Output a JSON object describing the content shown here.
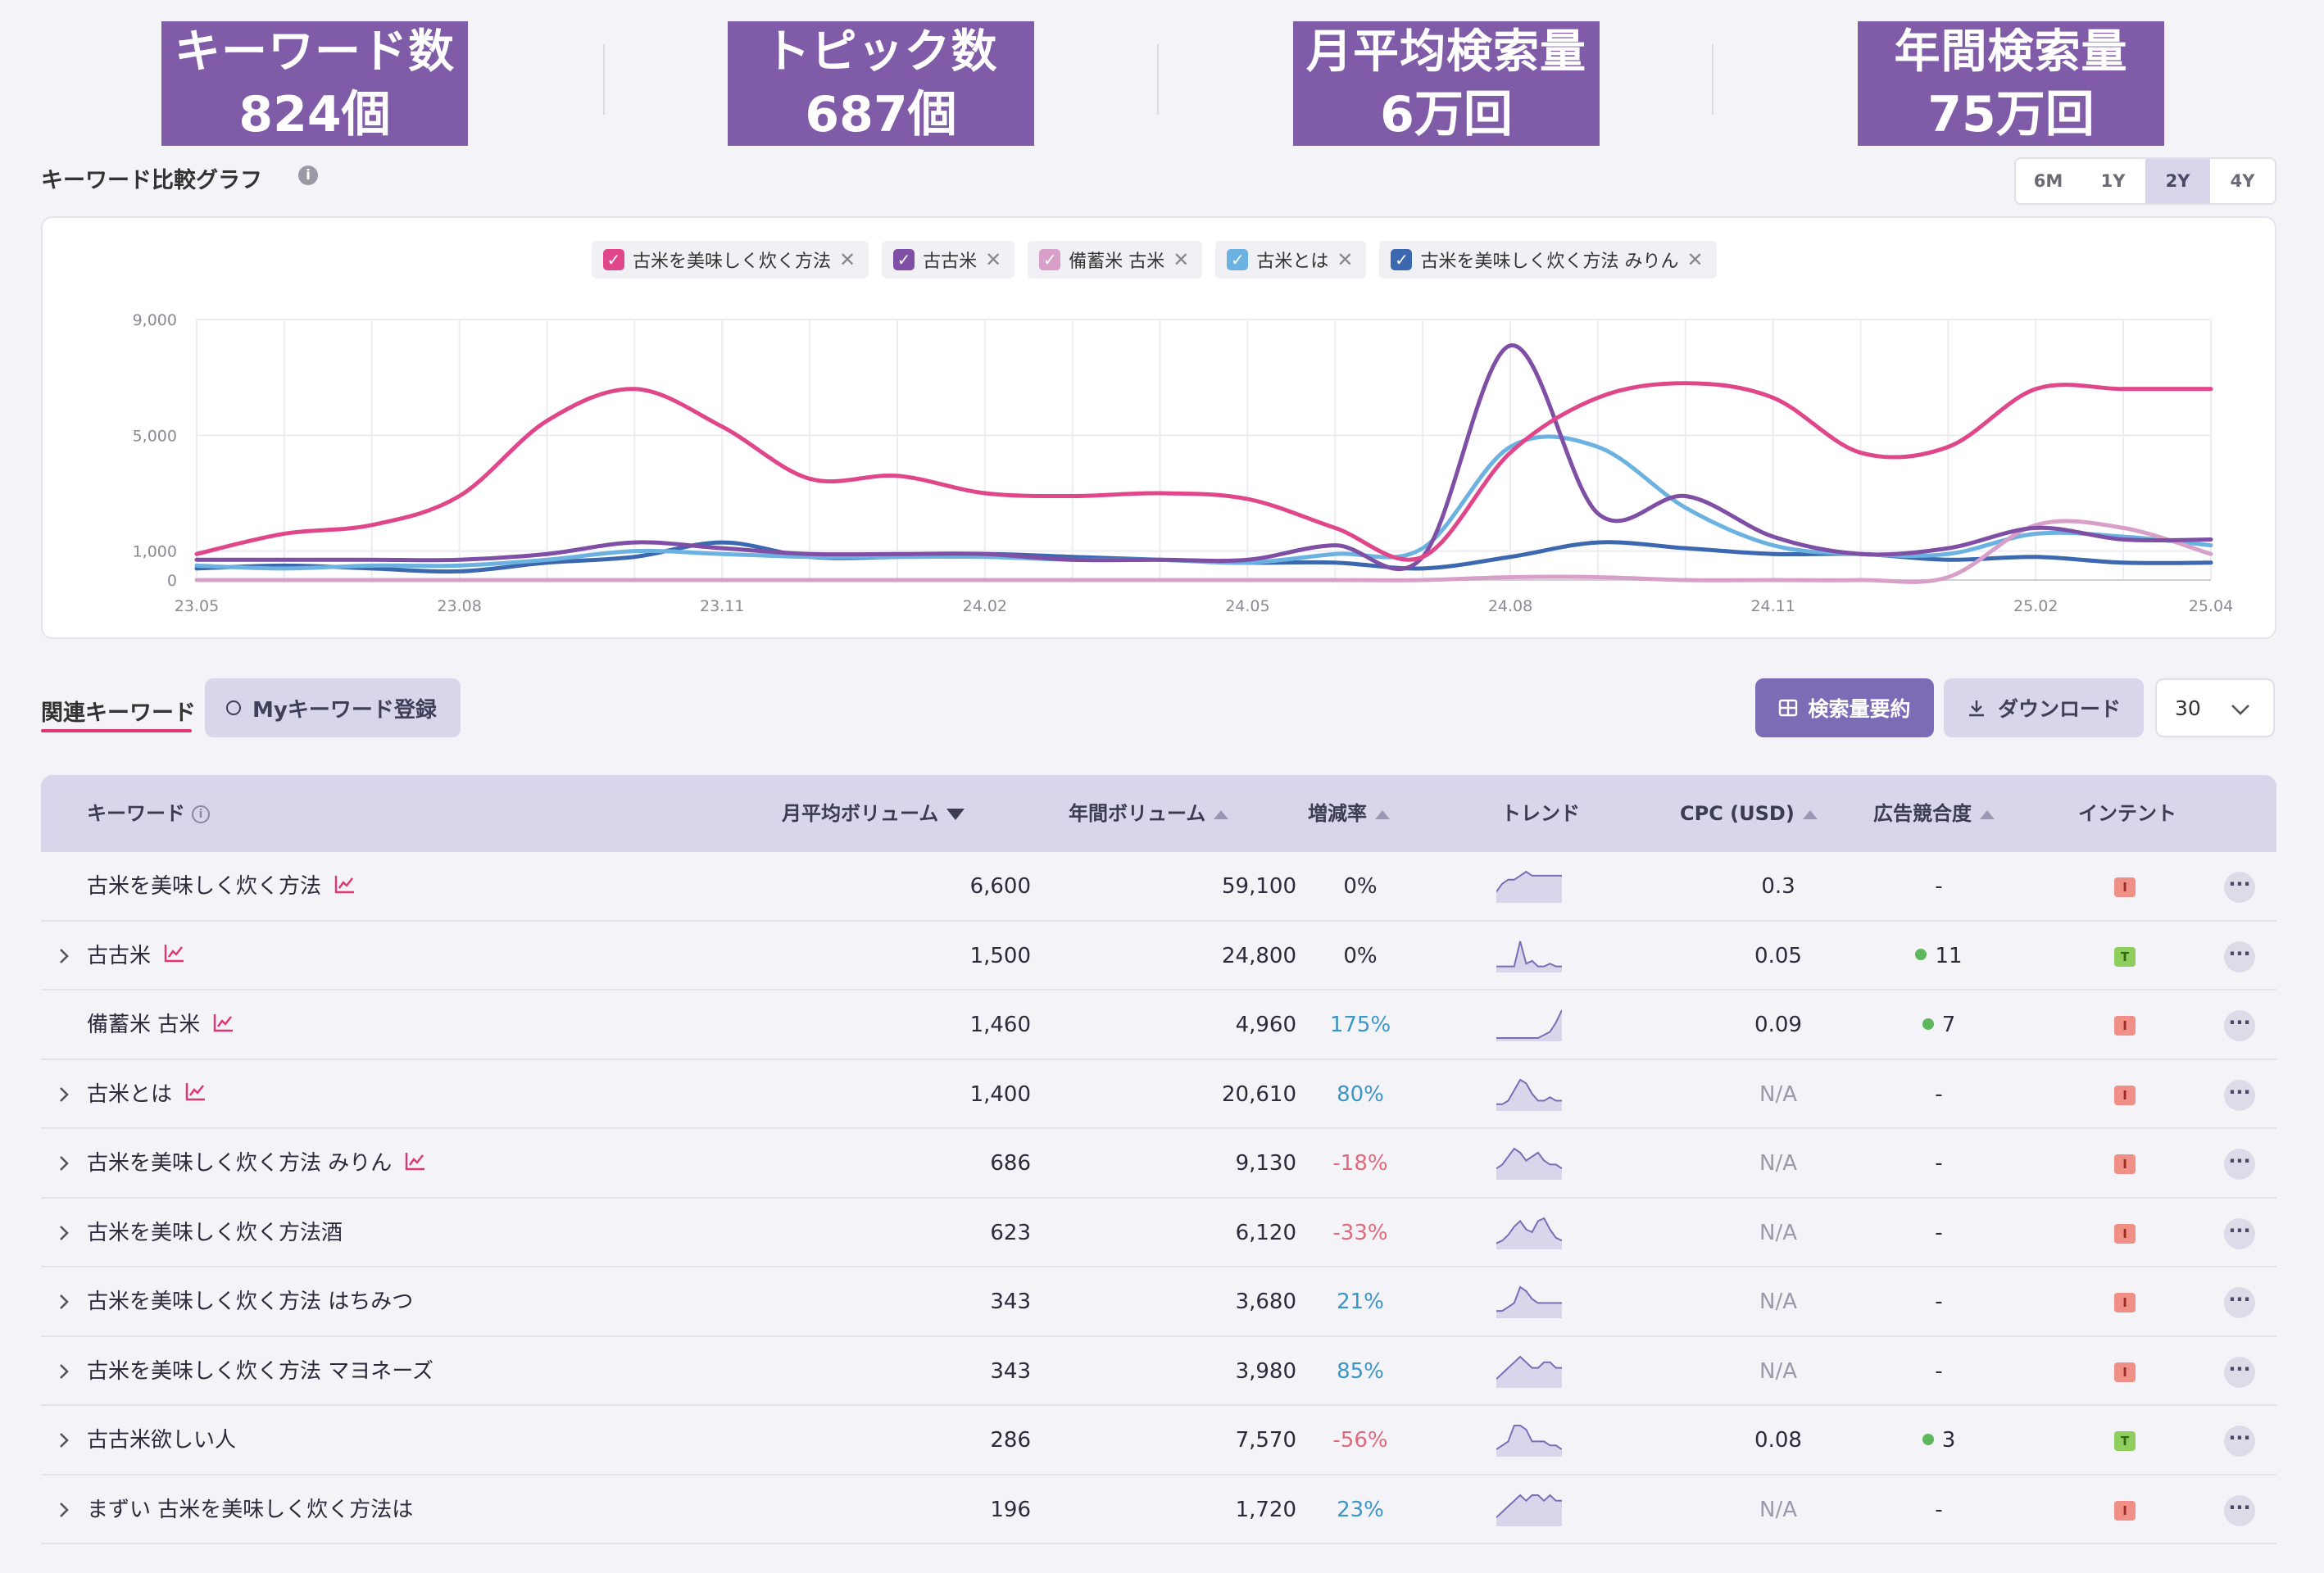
{
  "kpis": [
    {
      "title": "キーワード数",
      "value": "824個"
    },
    {
      "title": "トピック数",
      "value": "687個"
    },
    {
      "title": "月平均検索量",
      "value": "6万回"
    },
    {
      "title": "年間検索量",
      "value": "75万回"
    }
  ],
  "chart_header": {
    "title": "キーワード比較グラフ",
    "info_icon": "i",
    "ranges": [
      "6M",
      "1Y",
      "2Y",
      "4Y"
    ],
    "active_range": "2Y"
  },
  "legend": [
    {
      "label": "古米を美味しく炊く方法",
      "color": "#e0478a"
    },
    {
      "label": "古古米",
      "color": "#7f4fa6"
    },
    {
      "label": "備蓄米 古米",
      "color": "#d8a0c8"
    },
    {
      "label": "古米とは",
      "color": "#6cb2e0"
    },
    {
      "label": "古米を美味しく炊く方法 みりん",
      "color": "#3c68b0"
    }
  ],
  "legend_close": "✕",
  "checkmark": "✓",
  "chart_data": {
    "type": "line",
    "x": [
      "23.05",
      "23.06",
      "23.07",
      "23.08",
      "23.09",
      "23.10",
      "23.11",
      "23.12",
      "24.01",
      "24.02",
      "24.03",
      "24.04",
      "24.05",
      "24.06",
      "24.07",
      "24.08",
      "24.09",
      "24.10",
      "24.11",
      "24.12",
      "25.01",
      "25.02",
      "25.03",
      "25.04"
    ],
    "x_tick_labels": [
      "23.05",
      "23.08",
      "23.11",
      "24.02",
      "24.05",
      "24.08",
      "24.11",
      "25.02",
      "25.04"
    ],
    "y_ticks": [
      0,
      1000,
      5000,
      9000
    ],
    "y_tick_labels": [
      "0",
      "1,000",
      "5,000",
      "9,000"
    ],
    "ylim": [
      0,
      9000
    ],
    "series": [
      {
        "name": "古米を美味しく炊く方法",
        "color": "#e0478a",
        "values": [
          900,
          1600,
          1900,
          2900,
          5500,
          6600,
          5300,
          3500,
          3600,
          3000,
          2900,
          3000,
          2800,
          1800,
          800,
          4400,
          6300,
          6800,
          6300,
          4400,
          4600,
          6600,
          6600,
          6600
        ]
      },
      {
        "name": "古古米",
        "color": "#7f4fa6",
        "values": [
          700,
          700,
          700,
          700,
          900,
          1300,
          1100,
          900,
          900,
          900,
          700,
          700,
          700,
          1200,
          800,
          8100,
          2300,
          2900,
          1500,
          900,
          1100,
          1800,
          1400,
          1400
        ]
      },
      {
        "name": "備蓄米 古米",
        "color": "#d8a0c8",
        "values": [
          0,
          0,
          0,
          0,
          0,
          0,
          0,
          0,
          0,
          0,
          0,
          0,
          0,
          0,
          0,
          100,
          100,
          0,
          0,
          0,
          100,
          1900,
          1800,
          900
        ]
      },
      {
        "name": "古米とは",
        "color": "#6cb2e0",
        "values": [
          500,
          400,
          500,
          500,
          700,
          1000,
          900,
          800,
          800,
          800,
          700,
          700,
          600,
          900,
          1100,
          4600,
          4600,
          2500,
          1200,
          900,
          900,
          1600,
          1500,
          1200
        ]
      },
      {
        "name": "古米を美味しく炊く方法 みりん",
        "color": "#3c68b0",
        "values": [
          400,
          500,
          400,
          300,
          600,
          800,
          1300,
          800,
          800,
          900,
          800,
          700,
          600,
          600,
          400,
          800,
          1300,
          1100,
          900,
          900,
          700,
          800,
          600,
          600
        ]
      }
    ]
  },
  "tabs": {
    "related": "関連キーワード",
    "my_keywords": "Myキーワード登録"
  },
  "buttons": {
    "summary": "検索量要約",
    "download": "ダウンロード",
    "per_page": "30"
  },
  "table": {
    "headers": {
      "keyword": "キーワード",
      "monthly": "月平均ボリューム",
      "yearly": "年間ボリューム",
      "rate": "増減率",
      "trend": "トレンド",
      "cpc": "CPC (USD)",
      "competition": "広告競合度",
      "intent": "インテント"
    },
    "header_info_icon": "i",
    "expand_glyph": "›",
    "more_glyph": "···",
    "rows": [
      {
        "keyword": "古米を美味しく炊く方法",
        "expandable": false,
        "chart_icon": true,
        "monthly": "6,600",
        "yearly": "59,100",
        "rate": "0%",
        "rate_class": "",
        "cpc": "0.3",
        "competition": "-",
        "comp_dot": false,
        "intent": "I",
        "trend": [
          2,
          4,
          5,
          5,
          6,
          7,
          6,
          6,
          6,
          6,
          6,
          6
        ]
      },
      {
        "keyword": "古古米",
        "expandable": true,
        "chart_icon": true,
        "monthly": "1,500",
        "yearly": "24,800",
        "rate": "0%",
        "rate_class": "",
        "cpc": "0.05",
        "competition": "11",
        "comp_dot": true,
        "intent": "T",
        "trend": [
          1,
          1,
          1,
          1,
          10,
          2,
          3,
          1,
          1,
          2,
          1,
          1
        ]
      },
      {
        "keyword": "備蓄米 古米",
        "expandable": false,
        "chart_icon": true,
        "monthly": "1,460",
        "yearly": "4,960",
        "rate": "175%",
        "rate_class": "pos",
        "cpc": "0.09",
        "competition": "7",
        "comp_dot": true,
        "intent": "I",
        "trend": [
          0,
          0,
          0,
          0,
          0,
          0,
          0,
          0,
          1,
          2,
          5,
          9
        ]
      },
      {
        "keyword": "古米とは",
        "expandable": true,
        "chart_icon": true,
        "monthly": "1,400",
        "yearly": "20,610",
        "rate": "80%",
        "rate_class": "pos",
        "cpc": "N/A",
        "competition": "-",
        "comp_dot": false,
        "intent": "I",
        "trend": [
          1,
          1,
          2,
          5,
          8,
          7,
          4,
          2,
          2,
          3,
          2,
          2
        ]
      },
      {
        "keyword": "古米を美味しく炊く方法 みりん",
        "expandable": true,
        "chart_icon": true,
        "monthly": "686",
        "yearly": "9,130",
        "rate": "-18%",
        "rate_class": "neg",
        "cpc": "N/A",
        "competition": "-",
        "comp_dot": false,
        "intent": "I",
        "trend": [
          2,
          3,
          5,
          7,
          6,
          4,
          5,
          6,
          4,
          3,
          3,
          2
        ]
      },
      {
        "keyword": "古米を美味しく炊く方法酒",
        "expandable": true,
        "chart_icon": false,
        "monthly": "623",
        "yearly": "6,120",
        "rate": "-33%",
        "rate_class": "neg",
        "cpc": "N/A",
        "competition": "-",
        "comp_dot": false,
        "intent": "I",
        "trend": [
          1,
          2,
          4,
          7,
          9,
          6,
          5,
          9,
          10,
          6,
          3,
          2
        ]
      },
      {
        "keyword": "古米を美味しく炊く方法 はちみつ",
        "expandable": true,
        "chart_icon": false,
        "monthly": "343",
        "yearly": "3,680",
        "rate": "21%",
        "rate_class": "pos",
        "cpc": "N/A",
        "competition": "-",
        "comp_dot": false,
        "intent": "I",
        "trend": [
          1,
          1,
          2,
          3,
          7,
          6,
          4,
          3,
          3,
          3,
          3,
          3
        ]
      },
      {
        "keyword": "古米を美味しく炊く方法 マヨネーズ",
        "expandable": true,
        "chart_icon": false,
        "monthly": "343",
        "yearly": "3,980",
        "rate": "85%",
        "rate_class": "pos",
        "cpc": "N/A",
        "competition": "-",
        "comp_dot": false,
        "intent": "I",
        "trend": [
          1,
          2,
          3,
          4,
          5,
          4,
          3,
          3,
          4,
          4,
          3,
          3
        ]
      },
      {
        "keyword": "古古米欲しい人",
        "expandable": true,
        "chart_icon": false,
        "monthly": "286",
        "yearly": "7,570",
        "rate": "-56%",
        "rate_class": "neg",
        "cpc": "0.08",
        "competition": "3",
        "comp_dot": true,
        "intent": "T",
        "trend": [
          1,
          2,
          3,
          7,
          7,
          6,
          3,
          3,
          3,
          2,
          2,
          1
        ]
      },
      {
        "keyword": "まずい 古米を美味しく炊く方法は",
        "expandable": true,
        "chart_icon": false,
        "monthly": "196",
        "yearly": "1,720",
        "rate": "23%",
        "rate_class": "pos",
        "cpc": "N/A",
        "competition": "-",
        "comp_dot": false,
        "intent": "I",
        "trend": [
          1,
          2,
          3,
          4,
          5,
          4,
          5,
          5,
          4,
          5,
          4,
          4
        ]
      }
    ]
  }
}
